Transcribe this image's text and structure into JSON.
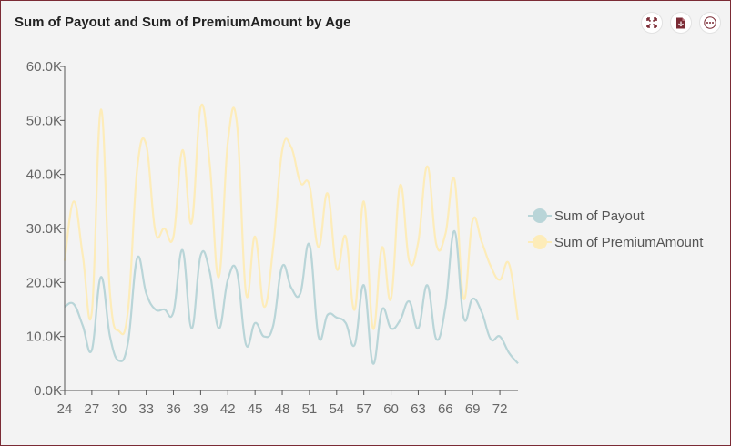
{
  "title": "Sum of Payout and Sum of PremiumAmount by Age",
  "toolbar": {
    "icons": [
      "expand-icon",
      "export-pdf-icon",
      "more-options-icon"
    ]
  },
  "colors": {
    "payout": "#b9d5d8",
    "premium": "#fdecb9",
    "axis": "#555555",
    "brand": "#7b2b35"
  },
  "chart_data": {
    "type": "line",
    "title": "Sum of Payout and Sum of PremiumAmount by Age",
    "x_ticks": [
      24,
      27,
      30,
      33,
      36,
      39,
      42,
      45,
      48,
      51,
      54,
      57,
      60,
      63,
      66,
      69,
      72
    ],
    "y_ticks": [
      "0.0K",
      "10.0K",
      "20.0K",
      "30.0K",
      "40.0K",
      "50.0K",
      "60.0K"
    ],
    "ylim": [
      0,
      60000
    ],
    "xlim": [
      24,
      74
    ],
    "grid": false,
    "legend_position": "right",
    "x": [
      24,
      25,
      26,
      27,
      28,
      29,
      30,
      31,
      32,
      33,
      34,
      35,
      36,
      37,
      38,
      39,
      40,
      41,
      42,
      43,
      44,
      45,
      46,
      47,
      48,
      49,
      50,
      51,
      52,
      53,
      54,
      55,
      56,
      57,
      58,
      59,
      60,
      61,
      62,
      63,
      64,
      65,
      66,
      67,
      68,
      69,
      70,
      71,
      72,
      73,
      74
    ],
    "series": [
      {
        "name": "Sum of Payout",
        "values": [
          15500,
          16000,
          12000,
          7500,
          21000,
          10000,
          5500,
          9000,
          24500,
          18000,
          15000,
          15000,
          14500,
          26000,
          11500,
          25000,
          22000,
          11500,
          20500,
          22000,
          8500,
          12500,
          10000,
          12000,
          23000,
          19000,
          18000,
          27000,
          10000,
          14000,
          13500,
          12500,
          8500,
          19500,
          5000,
          15000,
          11500,
          13000,
          16500,
          11500,
          19500,
          9500,
          15500,
          29500,
          13500,
          17000,
          14500,
          9500,
          10000,
          7000,
          5000
        ]
      },
      {
        "name": "Sum of PremiumAmount",
        "values": [
          24000,
          35000,
          25000,
          14500,
          52000,
          18000,
          11000,
          15000,
          41000,
          45500,
          29500,
          30000,
          28500,
          44500,
          31000,
          52500,
          42000,
          21000,
          46000,
          49500,
          18000,
          28500,
          15500,
          26500,
          44500,
          45000,
          38500,
          38000,
          26500,
          36500,
          22500,
          28500,
          15000,
          35000,
          11500,
          26500,
          17000,
          38000,
          24000,
          27500,
          41500,
          27000,
          29000,
          39000,
          17000,
          31500,
          27500,
          23000,
          20500,
          23500,
          13000
        ]
      }
    ]
  }
}
